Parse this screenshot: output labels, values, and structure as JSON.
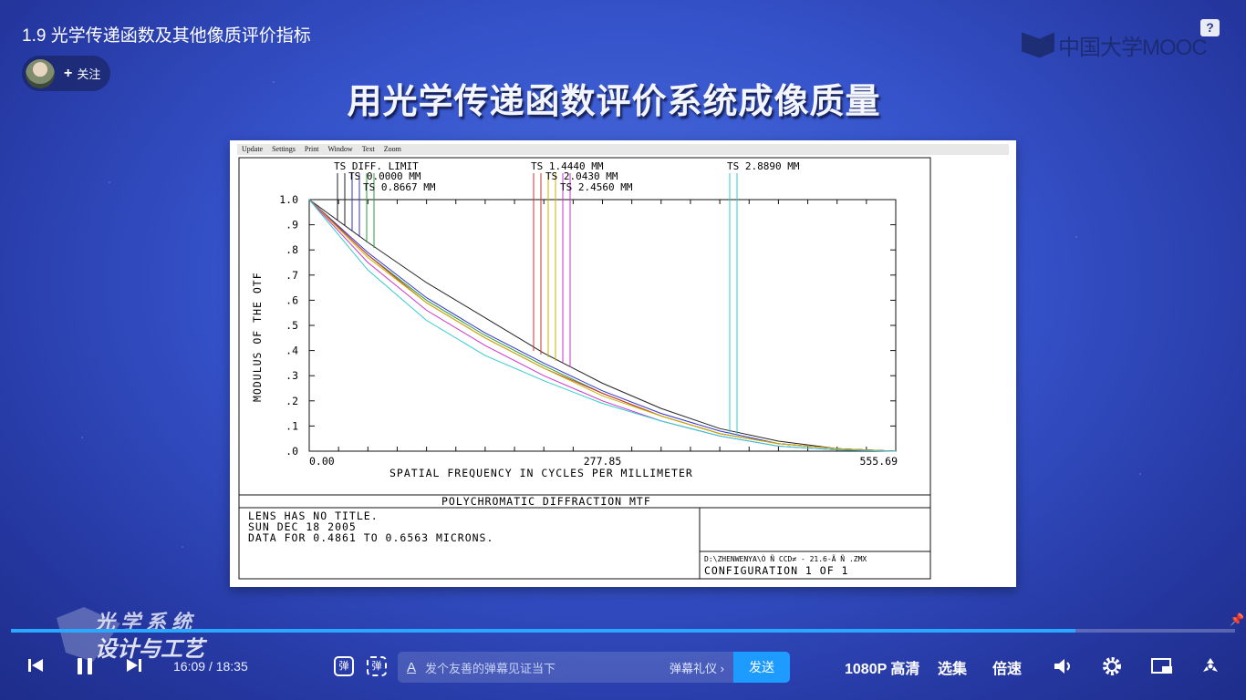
{
  "video": {
    "title": "1.9 光学传递函数及其他像质评价指标"
  },
  "uploader": {
    "follow_label": "关注"
  },
  "brand": {
    "logo_text": "中国大学MOOC",
    "help_label": "?"
  },
  "slide": {
    "heading": "用光学传递函数评价系统成像质量"
  },
  "zemax": {
    "menu": [
      "Update",
      "Settings",
      "Print",
      "Window",
      "Text",
      "Zoom"
    ],
    "legend": [
      "TS DIFF. LIMIT",
      "TS 0.0000 MM",
      "TS 0.8667 MM",
      "TS 1.4440 MM",
      "TS 2.0430 MM",
      "TS 2.4560 MM",
      "TS 2.8890 MM"
    ],
    "chart_data": {
      "type": "line",
      "title": "POLYCHROMATIC DIFFRACTION MTF",
      "xlabel": "SPATIAL FREQUENCY IN CYCLES PER MILLIMETER",
      "ylabel": "MODULUS OF THE OTF",
      "xlim": [
        0,
        555.69
      ],
      "ylim": [
        0,
        1.0
      ],
      "x_ticks": [
        "0.00",
        "277.85",
        "555.69"
      ],
      "y_ticks": [
        "1.0",
        ".9",
        ".8",
        ".7",
        ".6",
        ".5",
        ".4",
        ".3",
        ".2",
        ".1",
        ".0"
      ],
      "x": [
        0,
        55.57,
        111.14,
        166.71,
        222.28,
        277.85,
        333.41,
        388.98,
        444.55,
        500.12,
        555.69
      ],
      "series": [
        {
          "name": "TS DIFF. LIMIT",
          "color": "#222222",
          "values": [
            1.0,
            0.83,
            0.67,
            0.53,
            0.39,
            0.27,
            0.17,
            0.09,
            0.04,
            0.01,
            0.0
          ]
        },
        {
          "name": "TS 0.0000 MM",
          "color": "#3333cc",
          "values": [
            1.0,
            0.79,
            0.61,
            0.47,
            0.35,
            0.24,
            0.15,
            0.08,
            0.03,
            0.01,
            0.0
          ]
        },
        {
          "name": "TS 0.8667 MM",
          "color": "#2a9d3a",
          "values": [
            1.0,
            0.78,
            0.6,
            0.46,
            0.34,
            0.23,
            0.14,
            0.07,
            0.03,
            0.01,
            0.0
          ]
        },
        {
          "name": "TS 1.4440 MM",
          "color": "#cc3333",
          "values": [
            1.0,
            0.78,
            0.59,
            0.45,
            0.33,
            0.23,
            0.14,
            0.07,
            0.03,
            0.01,
            0.0
          ]
        },
        {
          "name": "TS 2.0430 MM",
          "color": "#c8b000",
          "values": [
            1.0,
            0.77,
            0.59,
            0.45,
            0.33,
            0.22,
            0.14,
            0.07,
            0.03,
            0.01,
            0.0
          ]
        },
        {
          "name": "TS 2.4560 MM",
          "color": "#cc33cc",
          "values": [
            1.0,
            0.75,
            0.56,
            0.42,
            0.3,
            0.2,
            0.12,
            0.06,
            0.02,
            0.005,
            0.0
          ]
        },
        {
          "name": "TS 2.8890 MM",
          "color": "#33cccc",
          "values": [
            1.0,
            0.72,
            0.52,
            0.38,
            0.28,
            0.19,
            0.12,
            0.06,
            0.02,
            0.005,
            0.0
          ]
        }
      ]
    },
    "info_lines": [
      "LENS HAS NO TITLE.",
      "SUN DEC 18 2005",
      "DATA FOR 0.4861 TO 0.6563 MICRONS."
    ],
    "file_path": "D:\\ZHENWENYA\\Ò  Ñ CCD≠  -    21.6-Ã   Ñ   .ZMX",
    "configuration": "CONFIGURATION  1  OF  1"
  },
  "watermark": {
    "line1": "光学系统",
    "line2": "设计与工艺"
  },
  "player": {
    "progress_fraction": 0.8695,
    "current_time": "16:09",
    "duration": "18:35",
    "danmu_toggle_label": "弹",
    "danmu_settings_label": "弹",
    "danmu_placeholder": "发个友善的弹幕见证当下",
    "danmu_gift_label": "弹幕礼仪 ›",
    "send_label": "发送",
    "quality_label": "1080P 高清",
    "episodes_label": "选集",
    "speed_label": "倍速"
  }
}
